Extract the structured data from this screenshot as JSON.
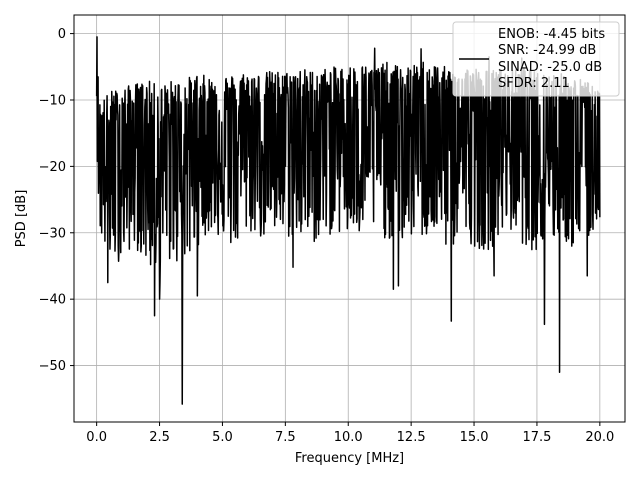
{
  "chart_data": {
    "type": "line",
    "title": "",
    "xlabel": "Frequency [MHz]",
    "ylabel": "PSD [dB]",
    "xlim": [
      -0.9,
      21.0
    ],
    "ylim": [
      -58.5,
      2.8
    ],
    "xticks": [
      0.0,
      2.5,
      5.0,
      7.5,
      10.0,
      12.5,
      15.0,
      17.5,
      20.0
    ],
    "xtick_labels": [
      "0.0",
      "2.5",
      "5.0",
      "7.5",
      "10.0",
      "12.5",
      "15.0",
      "17.5",
      "20.0"
    ],
    "yticks": [
      0,
      -10,
      -20,
      -30,
      -40,
      -50
    ],
    "ytick_labels": [
      "0",
      "−10",
      "−20",
      "−30",
      "−40",
      "−50"
    ],
    "grid": true,
    "legend_position": "top-right",
    "legend_lines": [
      "ENOB: -4.45 bits",
      "SNR: -24.99 dB",
      "SINAD: -25.0 dB",
      "SFDR: 2.11"
    ],
    "series": [
      {
        "color": "#000000",
        "envelope": {
          "x": [
            0.0,
            0.1,
            0.3,
            0.6,
            1.0,
            1.5,
            2.0,
            2.5,
            3.0,
            3.5,
            4.0,
            4.5,
            5.0,
            5.5,
            6.0,
            6.5,
            7.0,
            7.5,
            8.0,
            8.5,
            9.0,
            9.5,
            10.0,
            10.5,
            11.0,
            11.5,
            12.0,
            12.5,
            13.0,
            13.5,
            14.0,
            14.5,
            15.0,
            15.5,
            16.0,
            16.5,
            17.0,
            17.5,
            18.0,
            18.5,
            19.0,
            19.5,
            20.0
          ],
          "upper": [
            -1.0,
            -10.0,
            -9.5,
            -8.5,
            -8.2,
            -7.5,
            -7.0,
            -7.8,
            -7.0,
            -6.8,
            -6.0,
            -6.5,
            -6.0,
            -6.2,
            -5.5,
            -6.0,
            -5.5,
            -5.8,
            -5.0,
            -5.5,
            -5.2,
            -5.0,
            -4.8,
            -4.5,
            -5.0,
            -4.3,
            -4.8,
            -5.0,
            -4.0,
            -4.5,
            -5.2,
            -4.8,
            -5.0,
            -5.5,
            -5.2,
            -5.5,
            -5.0,
            -5.8,
            -5.5,
            -6.0,
            -6.5,
            -7.0,
            -9.0
          ],
          "lower": [
            -15.0,
            -30.0,
            -33.0,
            -35.0,
            -34.0,
            -32.0,
            -35.0,
            -38.0,
            -34.0,
            -36.0,
            -32.0,
            -30.0,
            -31.0,
            -33.0,
            -30.0,
            -31.0,
            -31.0,
            -31.0,
            -31.0,
            -32.0,
            -31.0,
            -30.0,
            -31.0,
            -31.0,
            -30.0,
            -31.0,
            -32.0,
            -31.0,
            -31.0,
            -31.0,
            -33.0,
            -31.0,
            -32.0,
            -33.0,
            -31.0,
            -30.0,
            -32.0,
            -33.0,
            -32.0,
            -31.0,
            -33.0,
            -32.0,
            -28.0
          ]
        },
        "deep_dips": [
          {
            "x": 0.45,
            "y": -37.5
          },
          {
            "x": 2.3,
            "y": -42.5
          },
          {
            "x": 2.5,
            "y": -40.0
          },
          {
            "x": 3.4,
            "y": -55.8
          },
          {
            "x": 4.0,
            "y": -39.5
          },
          {
            "x": 7.8,
            "y": -35.2
          },
          {
            "x": 11.8,
            "y": -38.5
          },
          {
            "x": 12.0,
            "y": -38.0
          },
          {
            "x": 14.1,
            "y": -43.3
          },
          {
            "x": 15.8,
            "y": -36.5
          },
          {
            "x": 17.8,
            "y": -43.8
          },
          {
            "x": 18.4,
            "y": -51.0
          },
          {
            "x": 19.5,
            "y": -36.5
          }
        ],
        "peaks": [
          {
            "x": 0.02,
            "y": -0.5
          },
          {
            "x": 11.05,
            "y": -2.2
          },
          {
            "x": 12.9,
            "y": -2.3
          },
          {
            "x": 15.6,
            "y": -3.5
          },
          {
            "x": 16.9,
            "y": -3.7
          }
        ]
      }
    ]
  }
}
